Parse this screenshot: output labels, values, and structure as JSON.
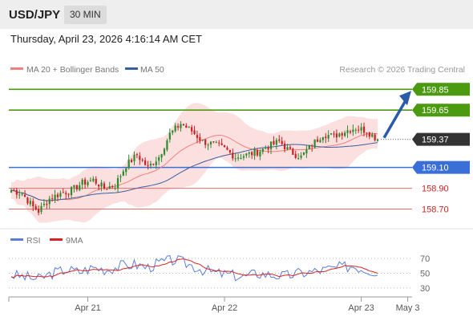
{
  "header": {
    "pair": "USD/JPY",
    "timeframe": "30 MIN",
    "datetime": "Thursday, April 23, 2026 4:16:14 AM CET"
  },
  "legend": {
    "ma20": {
      "label": "MA 20 + Bollinger Bands",
      "color": "#f08080"
    },
    "ma50": {
      "label": "MA 50",
      "color": "#3a5fa0"
    },
    "credit": "Research © 2026 Trading Central"
  },
  "rsi_legend": {
    "rsi": {
      "label": "RSI",
      "color": "#5b7fd6"
    },
    "ma": {
      "label": "9MA",
      "color": "#dd2222"
    }
  },
  "chart_data": {
    "type": "candlestick",
    "price_range": [
      158.55,
      159.96
    ],
    "last_price": 159.37,
    "colors": {
      "up": "#2e8b2e",
      "down": "#cc2222",
      "bollinger": "#fbd9d9",
      "resistance": "#4c9a0f",
      "pivot": "#3a6fd8",
      "support": "#e07070",
      "arrow": "#2a5aa8"
    },
    "levels": [
      {
        "name": "resistance-2",
        "value": 159.85,
        "label": "159.85",
        "kind": "resistance"
      },
      {
        "name": "resistance-1",
        "value": 159.65,
        "label": "159.65",
        "kind": "resistance"
      },
      {
        "name": "pivot",
        "value": 159.1,
        "label": "159.10",
        "kind": "pivot"
      },
      {
        "name": "support-1",
        "value": 158.9,
        "label": "158.90",
        "kind": "support"
      },
      {
        "name": "support-2",
        "value": 158.7,
        "label": "158.70",
        "kind": "support"
      }
    ],
    "last_label": "159.37",
    "close_anchors": [
      [
        0,
        158.88
      ],
      [
        4,
        158.85
      ],
      [
        8,
        158.72
      ],
      [
        10,
        158.68
      ],
      [
        14,
        158.8
      ],
      [
        18,
        158.85
      ],
      [
        22,
        158.88
      ],
      [
        26,
        158.95
      ],
      [
        30,
        158.98
      ],
      [
        34,
        158.9
      ],
      [
        38,
        158.93
      ],
      [
        42,
        159.12
      ],
      [
        46,
        159.22
      ],
      [
        50,
        159.1
      ],
      [
        54,
        159.2
      ],
      [
        58,
        159.42
      ],
      [
        62,
        159.52
      ],
      [
        66,
        159.45
      ],
      [
        70,
        159.35
      ],
      [
        74,
        159.32
      ],
      [
        78,
        159.28
      ],
      [
        82,
        159.2
      ],
      [
        86,
        159.22
      ],
      [
        90,
        159.25
      ],
      [
        94,
        159.3
      ],
      [
        98,
        159.35
      ],
      [
        102,
        159.25
      ],
      [
        106,
        159.2
      ],
      [
        110,
        159.32
      ],
      [
        114,
        159.42
      ],
      [
        118,
        159.4
      ],
      [
        122,
        159.45
      ],
      [
        126,
        159.48
      ],
      [
        130,
        159.45
      ],
      [
        134,
        159.37
      ]
    ],
    "x_ticks": [
      {
        "label": "Apr 21",
        "at": 28
      },
      {
        "label": "Apr 22",
        "at": 78
      },
      {
        "label": "Apr 23",
        "at": 128
      },
      {
        "label": "May 3",
        "at": 145
      }
    ],
    "x_max": 146,
    "forecast_target": 159.85,
    "rsi": {
      "range": [
        20,
        80
      ],
      "ticks": [
        70,
        50,
        30
      ],
      "anchors": [
        [
          0,
          48
        ],
        [
          5,
          45
        ],
        [
          10,
          42
        ],
        [
          15,
          50
        ],
        [
          20,
          55
        ],
        [
          25,
          52
        ],
        [
          30,
          58
        ],
        [
          35,
          55
        ],
        [
          40,
          60
        ],
        [
          45,
          62
        ],
        [
          50,
          58
        ],
        [
          55,
          65
        ],
        [
          60,
          68
        ],
        [
          65,
          62
        ],
        [
          70,
          55
        ],
        [
          75,
          50
        ],
        [
          80,
          48
        ],
        [
          85,
          45
        ],
        [
          90,
          50
        ],
        [
          95,
          48
        ],
        [
          100,
          46
        ],
        [
          105,
          50
        ],
        [
          110,
          52
        ],
        [
          115,
          55
        ],
        [
          120,
          58
        ],
        [
          125,
          60
        ],
        [
          130,
          55
        ],
        [
          134,
          52
        ]
      ]
    }
  }
}
